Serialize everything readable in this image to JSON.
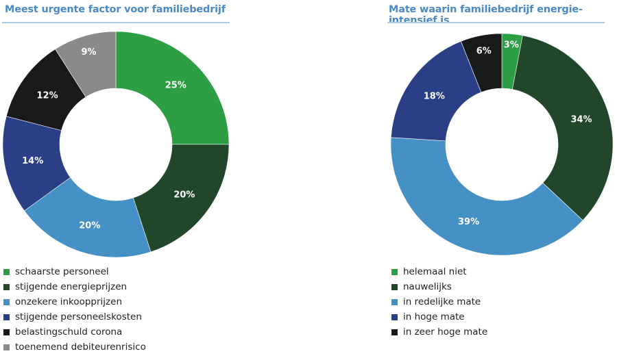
{
  "chart_data": [
    {
      "type": "pie",
      "donut": true,
      "title": "Meest urgente factor voor familiebedrijf",
      "categories": [
        "schaarste personeel",
        "stijgende energieprijzen",
        "onzekere inkoopprijzen",
        "stijgende personeelskosten",
        "belastingschuld corona",
        "toenemend debiteurenrisico"
      ],
      "values": [
        25,
        20,
        20,
        14,
        12,
        9
      ],
      "labels": [
        "25%",
        "20%",
        "20%",
        "14%",
        "12%",
        "9%"
      ],
      "colors": [
        "#2e9e44",
        "#21462a",
        "#4590c4",
        "#2b3f86",
        "#17191b",
        "#8a8a8a"
      ],
      "legend": "bottom-left"
    },
    {
      "type": "pie",
      "donut": true,
      "title": "Mate waarin familiebedrijf energie-intensief is",
      "categories": [
        "helemaal niet",
        "nauwelijks",
        "in redelijke mate",
        "in hoge mate",
        "in zeer hoge mate"
      ],
      "values": [
        3,
        34,
        39,
        18,
        6
      ],
      "labels": [
        "3%",
        "34%",
        "39%",
        "18%",
        "6%"
      ],
      "colors": [
        "#2e9e44",
        "#21462a",
        "#4590c4",
        "#2b3f86",
        "#17191b"
      ],
      "legend": "bottom-left"
    }
  ]
}
